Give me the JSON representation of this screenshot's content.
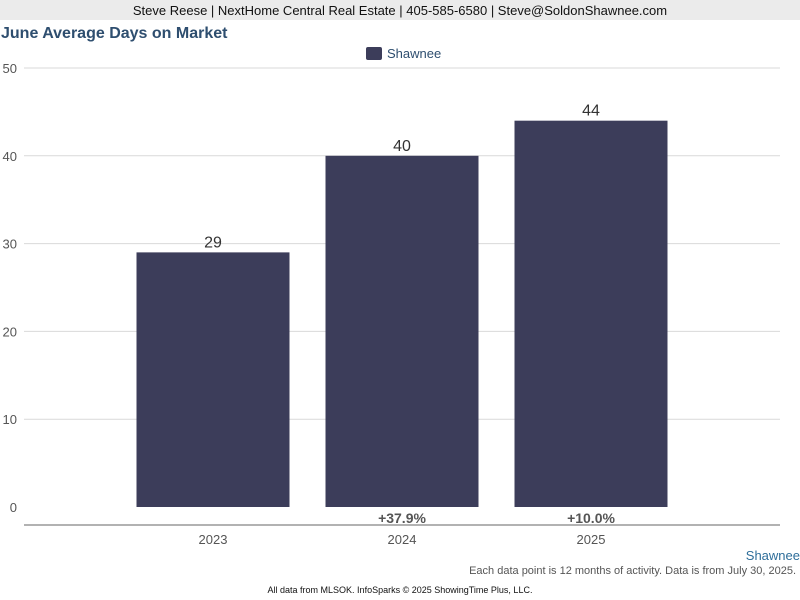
{
  "header": {
    "contact": "Steve Reese | NextHome Central Real Estate | 405-585-6580 | Steve@SoldonShawnee.com"
  },
  "footer": {
    "series_label": "Shawnee",
    "note": "Each data point is 12 months of activity. Data is from July 30, 2025.",
    "credit": "All data from MLSOK. InfoSparks © 2025 ShowingTime Plus, LLC."
  },
  "chart_data": {
    "type": "bar",
    "title": "June Average Days on Market",
    "xlabel": "",
    "ylabel": "",
    "categories": [
      "2023",
      "2024",
      "2025"
    ],
    "series": [
      {
        "name": "Shawnee",
        "values": [
          29,
          40,
          44
        ],
        "color": "#3c3d5a"
      }
    ],
    "value_labels": [
      "29",
      "40",
      "44"
    ],
    "change_labels": [
      "",
      "+37.9%",
      "+10.0%"
    ],
    "ylim": [
      0,
      50
    ],
    "yticks": [
      0,
      10,
      20,
      30,
      40,
      50
    ],
    "grid": true,
    "legend": "top-center"
  }
}
